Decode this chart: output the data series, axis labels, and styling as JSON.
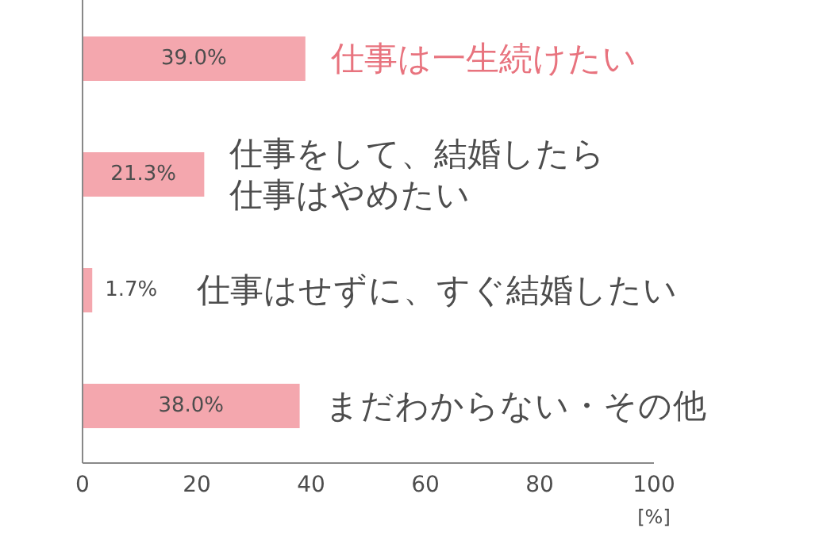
{
  "chart_data": {
    "type": "bar",
    "orientation": "horizontal",
    "categories": [
      "仕事は一生続けたい",
      "仕事をして、結婚したら仕事はやめたい",
      "仕事はせずに、すぐ結婚したい",
      "まだわからない・その他"
    ],
    "values": [
      39.0,
      21.3,
      1.7,
      38.0
    ],
    "value_labels": [
      "39.0%",
      "21.3%",
      "1.7%",
      "38.0%"
    ],
    "color": "#f4a7ae",
    "xlabel": "[%]",
    "xlim": [
      0,
      100
    ],
    "xticks": [
      0,
      20,
      40,
      60,
      80,
      100
    ],
    "grid": false
  }
}
